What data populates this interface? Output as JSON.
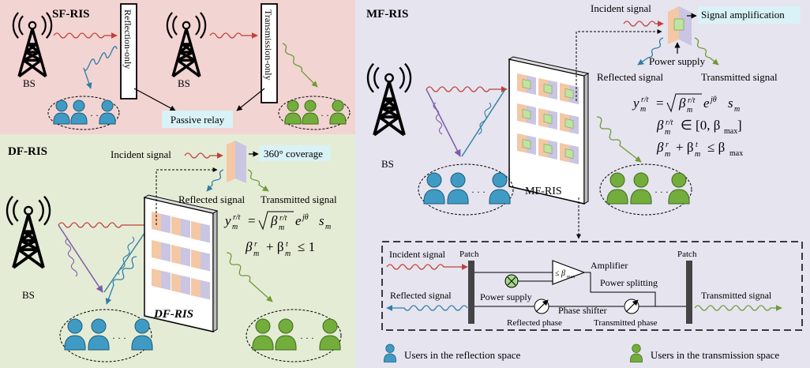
{
  "panels": {
    "sf": {
      "title": "SF-RIS",
      "bs_label": "BS",
      "reflection_only": "Reflection-only",
      "transmission_only": "Transmission-only",
      "passive_relay": "Passive relay",
      "dots": "· · ·"
    },
    "df": {
      "title": "DF-RIS",
      "bs_label": "BS",
      "incident_signal": "Incident signal",
      "coverage": "360° coverage",
      "reflected_signal": "Reflected signal",
      "transmitted_signal": "Transmitted signal",
      "surface_label": "DF-RIS",
      "eq1": "y_m^{r/t} = sqrt(β_m^{r/t}) e^{jθ_m^{r/t}} s_m",
      "eq2": "β_m^r + β_m^t ≤ 1",
      "dots": "· · ·"
    },
    "mf": {
      "title": "MF-RIS",
      "bs_label": "BS",
      "incident_signal": "Incident signal",
      "signal_amplification": "Signal amplification",
      "power_supply": "Power supply",
      "reflected_signal": "Reflected signal",
      "transmitted_signal": "Transmitted signal",
      "surface_label": "MF-RIS",
      "eq1": "y_m^{r/t} = sqrt(β_m^{r/t}) e^{jθ_m^{r/t}} s_m",
      "eq2": "β_m^{r/t} ∈ [0, β_max]",
      "eq3": "β_m^r + β_m^t ≤ β_max",
      "dots": "· · ·",
      "detail": {
        "incident_signal": "Incident signal",
        "patch_left": "Patch",
        "patch_right": "Patch",
        "amplifier": "Amplifier",
        "amp_symbol": "≤ β",
        "amp_sub": "max",
        "power_splitting": "Power splitting",
        "power_supply": "Power supply",
        "phase_shifter": "Phase shifter",
        "reflected_signal": "Reflected signal",
        "transmitted_signal": "Transmitted signal",
        "reflected_phase": "Reflected phase",
        "transmitted_phase": "Transmitted phase"
      }
    }
  },
  "legend": {
    "reflection": "Users in the reflection space",
    "transmission": "Users in the transmission space"
  },
  "colors": {
    "sf_bg": "#f2d4d2",
    "df_bg": "#e5ecd6",
    "mf_bg": "#e6e4ef",
    "incident": "#c0403a",
    "reflected": "#2e7ea6",
    "transmitted": "#6f9a38",
    "triangle": "#7e5ca7",
    "user_blue": "#3f9bc4",
    "user_green": "#73ad3c",
    "cyan_box": "#d9f2f7"
  }
}
